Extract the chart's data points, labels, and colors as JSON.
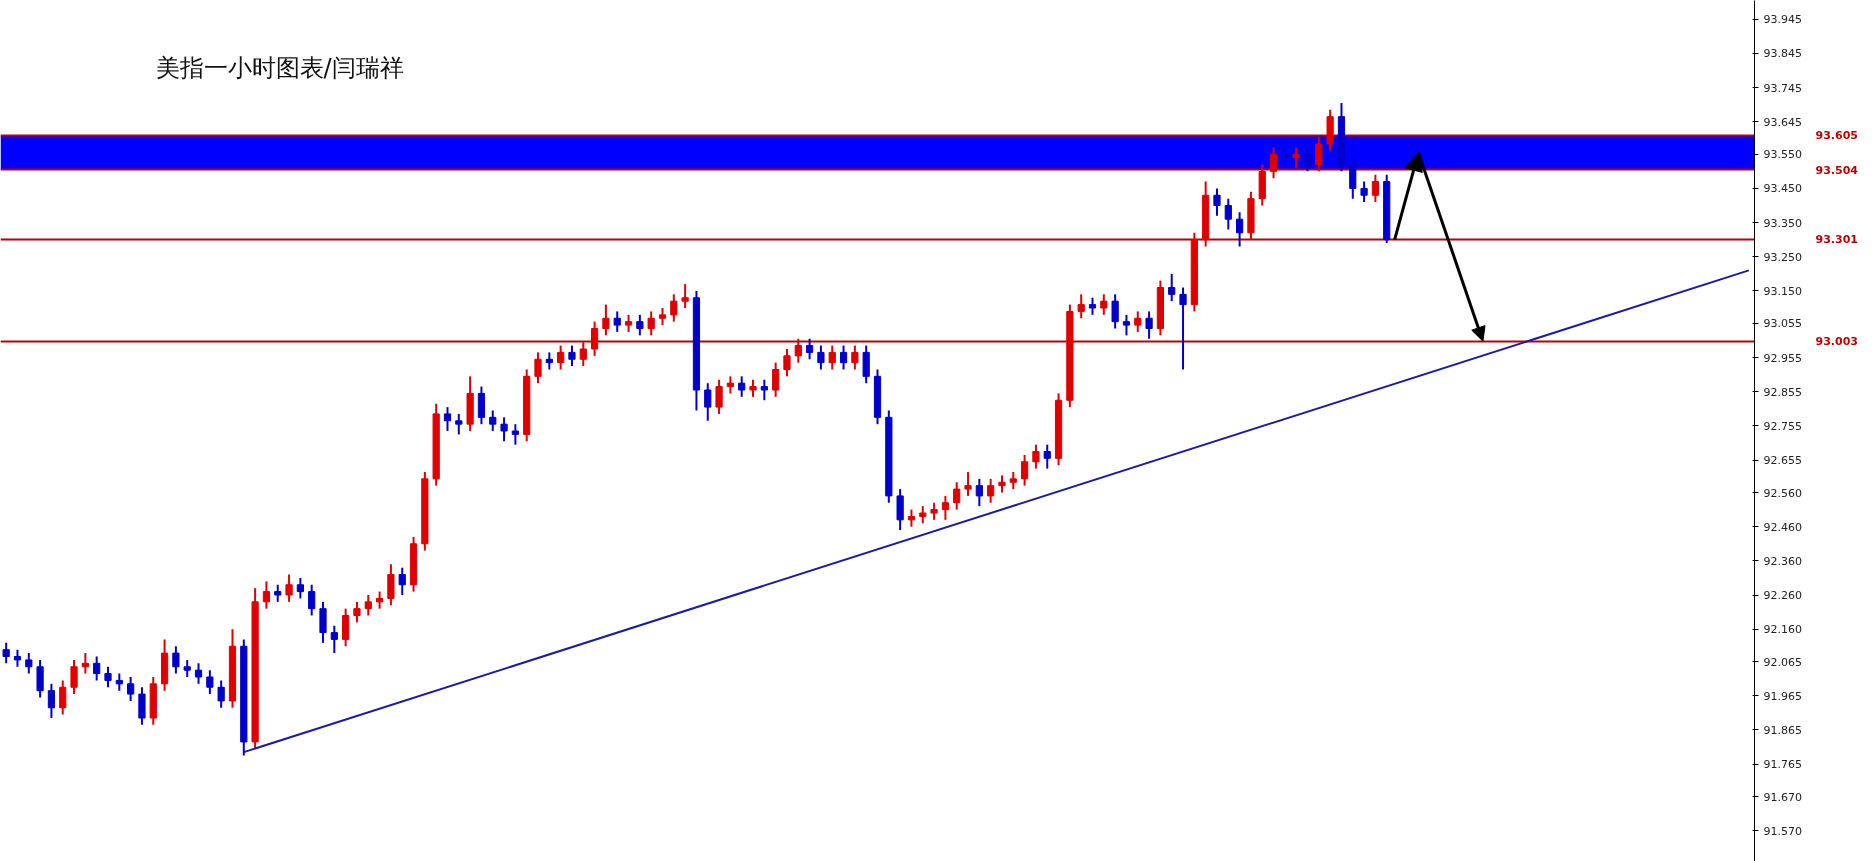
{
  "chart_data": {
    "type": "candlestick",
    "title": "美指一小时图表/闫瑞祥",
    "categories": [
      null,
      null,
      null,
      null,
      null,
      null,
      null,
      null,
      null,
      null,
      null,
      null,
      null,
      null,
      null,
      null,
      null,
      null,
      null,
      null,
      null,
      null,
      null,
      null,
      null,
      null,
      null,
      null,
      null,
      null,
      null,
      null,
      null,
      null,
      null,
      null,
      null,
      null,
      null,
      null,
      null,
      null,
      null,
      null,
      null,
      null,
      null,
      null,
      null,
      null,
      null,
      null,
      null,
      null,
      null,
      null,
      null,
      null,
      null,
      null,
      null,
      null,
      null,
      null,
      null,
      null,
      null,
      null,
      null,
      null,
      null,
      null,
      null,
      null,
      null,
      null,
      null,
      null,
      null,
      null,
      null,
      null,
      null,
      null,
      null,
      null,
      null,
      null,
      null,
      null,
      null,
      null,
      null,
      null,
      null,
      null,
      null,
      null,
      null,
      null,
      null,
      null,
      null,
      null,
      null,
      null,
      null,
      null,
      null,
      null,
      null,
      null,
      null,
      null,
      null,
      null,
      null,
      null,
      null,
      null,
      null,
      null,
      null,
      null,
      null,
      null,
      null,
      null,
      null,
      null,
      null,
      null,
      null,
      null,
      null,
      null,
      null,
      null,
      null,
      null,
      null,
      null,
      null,
      null,
      null,
      null,
      null,
      null,
      null,
      null,
      null,
      null,
      null,
      null,
      null
    ],
    "ohlc": [
      [
        92.1,
        92.12,
        92.06,
        92.08
      ],
      [
        92.08,
        92.1,
        92.05,
        92.07
      ],
      [
        92.07,
        92.09,
        92.03,
        92.05
      ],
      [
        92.05,
        92.07,
        91.96,
        91.98
      ],
      [
        91.98,
        92.0,
        91.9,
        91.93
      ],
      [
        91.93,
        92.01,
        91.91,
        91.99
      ],
      [
        91.99,
        92.07,
        91.97,
        92.05
      ],
      [
        92.05,
        92.09,
        92.03,
        92.06
      ],
      [
        92.06,
        92.08,
        92.01,
        92.03
      ],
      [
        92.03,
        92.05,
        91.99,
        92.01
      ],
      [
        92.01,
        92.03,
        91.98,
        92.0
      ],
      [
        92.0,
        92.02,
        91.95,
        91.97
      ],
      [
        91.97,
        91.99,
        91.88,
        91.9
      ],
      [
        91.9,
        92.02,
        91.88,
        92.0
      ],
      [
        92.0,
        92.13,
        91.98,
        92.09
      ],
      [
        92.09,
        92.11,
        92.03,
        92.05
      ],
      [
        92.05,
        92.07,
        92.02,
        92.04
      ],
      [
        92.04,
        92.06,
        92.0,
        92.02
      ],
      [
        92.02,
        92.04,
        91.97,
        91.99
      ],
      [
        91.99,
        92.01,
        91.93,
        91.95
      ],
      [
        91.95,
        92.16,
        91.93,
        92.11
      ],
      [
        92.11,
        92.13,
        91.79,
        91.83
      ],
      [
        91.83,
        92.28,
        91.81,
        92.24
      ],
      [
        92.24,
        92.3,
        92.22,
        92.27
      ],
      [
        92.27,
        92.29,
        92.24,
        92.26
      ],
      [
        92.26,
        92.32,
        92.24,
        92.29
      ],
      [
        92.29,
        92.31,
        92.25,
        92.27
      ],
      [
        92.27,
        92.29,
        92.2,
        92.22
      ],
      [
        92.22,
        92.24,
        92.12,
        92.15
      ],
      [
        92.15,
        92.17,
        92.09,
        92.13
      ],
      [
        92.13,
        92.22,
        92.11,
        92.2
      ],
      [
        92.2,
        92.24,
        92.18,
        92.22
      ],
      [
        92.22,
        92.26,
        92.2,
        92.24
      ],
      [
        92.24,
        92.27,
        92.22,
        92.25
      ],
      [
        92.25,
        92.35,
        92.23,
        92.32
      ],
      [
        92.32,
        92.34,
        92.26,
        92.29
      ],
      [
        92.29,
        92.43,
        92.27,
        92.41
      ],
      [
        92.41,
        92.62,
        92.39,
        92.6
      ],
      [
        92.6,
        92.82,
        92.58,
        92.79
      ],
      [
        92.79,
        92.81,
        92.74,
        92.77
      ],
      [
        92.77,
        92.79,
        92.73,
        92.76
      ],
      [
        92.76,
        92.9,
        92.74,
        92.85
      ],
      [
        92.85,
        92.87,
        92.76,
        92.78
      ],
      [
        92.78,
        92.8,
        92.74,
        92.76
      ],
      [
        92.76,
        92.78,
        92.71,
        92.74
      ],
      [
        92.74,
        92.76,
        92.7,
        92.73
      ],
      [
        92.73,
        92.92,
        92.71,
        92.9
      ],
      [
        92.9,
        92.97,
        92.88,
        92.95
      ],
      [
        92.95,
        92.97,
        92.92,
        92.94
      ],
      [
        92.94,
        92.99,
        92.92,
        92.97
      ],
      [
        92.97,
        92.99,
        92.93,
        92.95
      ],
      [
        92.95,
        93.0,
        92.93,
        92.98
      ],
      [
        92.98,
        93.06,
        92.96,
        93.04
      ],
      [
        93.04,
        93.11,
        93.02,
        93.07
      ],
      [
        93.07,
        93.09,
        93.03,
        93.05
      ],
      [
        93.05,
        93.08,
        93.03,
        93.06
      ],
      [
        93.06,
        93.08,
        93.02,
        93.04
      ],
      [
        93.04,
        93.09,
        93.02,
        93.07
      ],
      [
        93.07,
        93.1,
        93.05,
        93.08
      ],
      [
        93.08,
        93.14,
        93.06,
        93.12
      ],
      [
        93.12,
        93.17,
        93.1,
        93.13
      ],
      [
        93.13,
        93.15,
        92.8,
        92.86
      ],
      [
        92.86,
        92.88,
        92.77,
        92.81
      ],
      [
        92.81,
        92.89,
        92.79,
        92.87
      ],
      [
        92.87,
        92.9,
        92.85,
        92.88
      ],
      [
        92.88,
        92.9,
        92.84,
        92.86
      ],
      [
        92.86,
        92.89,
        92.84,
        92.87
      ],
      [
        92.87,
        92.89,
        92.83,
        92.86
      ],
      [
        92.86,
        92.94,
        92.84,
        92.92
      ],
      [
        92.92,
        92.98,
        92.9,
        92.96
      ],
      [
        92.96,
        93.01,
        92.94,
        92.99
      ],
      [
        92.99,
        93.01,
        92.95,
        92.97
      ],
      [
        92.97,
        92.99,
        92.92,
        92.94
      ],
      [
        92.94,
        92.99,
        92.92,
        92.97
      ],
      [
        92.97,
        92.99,
        92.92,
        92.94
      ],
      [
        92.94,
        92.99,
        92.92,
        92.97
      ],
      [
        92.97,
        92.99,
        92.88,
        92.9
      ],
      [
        92.9,
        92.92,
        92.76,
        92.78
      ],
      [
        92.78,
        92.8,
        92.53,
        92.55
      ],
      [
        92.55,
        92.57,
        92.45,
        92.48
      ],
      [
        92.48,
        92.51,
        92.46,
        92.49
      ],
      [
        92.49,
        92.52,
        92.47,
        92.5
      ],
      [
        92.5,
        92.53,
        92.48,
        92.51
      ],
      [
        92.51,
        92.55,
        92.48,
        92.53
      ],
      [
        92.53,
        92.59,
        92.51,
        92.57
      ],
      [
        92.57,
        92.62,
        92.55,
        92.58
      ],
      [
        92.58,
        92.6,
        92.52,
        92.55
      ],
      [
        92.55,
        92.6,
        92.53,
        92.58
      ],
      [
        92.58,
        92.61,
        92.56,
        92.59
      ],
      [
        92.59,
        92.62,
        92.57,
        92.6
      ],
      [
        92.6,
        92.67,
        92.58,
        92.65
      ],
      [
        92.65,
        92.7,
        92.63,
        92.68
      ],
      [
        92.68,
        92.7,
        92.63,
        92.66
      ],
      [
        92.66,
        92.85,
        92.64,
        92.83
      ],
      [
        92.83,
        93.11,
        92.81,
        93.09
      ],
      [
        93.09,
        93.14,
        93.07,
        93.11
      ],
      [
        93.11,
        93.13,
        93.08,
        93.1
      ],
      [
        93.1,
        93.14,
        93.08,
        93.12
      ],
      [
        93.12,
        93.14,
        93.04,
        93.06
      ],
      [
        93.06,
        93.08,
        93.02,
        93.05
      ],
      [
        93.05,
        93.09,
        93.03,
        93.07
      ],
      [
        93.07,
        93.09,
        93.01,
        93.04
      ],
      [
        93.04,
        93.18,
        93.02,
        93.16
      ],
      [
        93.16,
        93.2,
        93.12,
        93.14
      ],
      [
        93.14,
        93.16,
        92.92,
        93.11
      ],
      [
        93.11,
        93.32,
        93.09,
        93.3
      ],
      [
        93.3,
        93.47,
        93.28,
        93.43
      ],
      [
        93.43,
        93.45,
        93.37,
        93.4
      ],
      [
        93.4,
        93.42,
        93.33,
        93.36
      ],
      [
        93.36,
        93.38,
        93.28,
        93.32
      ],
      [
        93.32,
        93.44,
        93.3,
        93.42
      ],
      [
        93.42,
        93.52,
        93.4,
        93.5
      ],
      [
        93.5,
        93.57,
        93.48,
        93.55
      ],
      [
        93.55,
        93.57,
        93.51,
        93.54
      ],
      [
        93.54,
        93.57,
        93.51,
        93.55
      ],
      [
        93.55,
        93.57,
        93.5,
        93.52
      ],
      [
        93.52,
        93.6,
        93.5,
        93.58
      ],
      [
        93.58,
        93.68,
        93.56,
        93.66
      ],
      [
        93.66,
        93.7,
        93.5,
        93.52
      ],
      [
        93.52,
        93.54,
        93.42,
        93.45
      ],
      [
        93.45,
        93.47,
        93.41,
        93.43
      ],
      [
        93.43,
        93.49,
        93.41,
        93.47
      ],
      [
        93.47,
        93.49,
        93.29,
        93.3
      ],
      null,
      null,
      null,
      null,
      null,
      null,
      null,
      null,
      null,
      null,
      null,
      null,
      null,
      null,
      null,
      null,
      null,
      null,
      null,
      null,
      null,
      null,
      null,
      null,
      null,
      null,
      null,
      null,
      null,
      null,
      null,
      null
    ],
    "colors": [
      "#0000cc",
      "#0000cc",
      "#0000cc",
      "#0000cc",
      "#0000cc",
      "#e00000",
      "#e00000",
      "#e00000",
      "#0000cc",
      "#0000cc",
      "#0000cc",
      "#0000cc",
      "#0000cc",
      "#e00000",
      "#e00000",
      "#0000cc",
      "#0000cc",
      "#0000cc",
      "#0000cc",
      "#0000cc",
      "#e00000",
      "#0000cc",
      "#e00000",
      "#e00000",
      "#0000cc",
      "#e00000",
      "#0000cc",
      "#0000cc",
      "#0000cc",
      "#0000cc",
      "#e00000",
      "#e00000",
      "#e00000",
      "#e00000",
      "#e00000",
      "#0000cc",
      "#e00000",
      "#e00000",
      "#e00000",
      "#0000cc",
      "#0000cc",
      "#e00000",
      "#0000cc",
      "#0000cc",
      "#0000cc",
      "#0000cc",
      "#e00000",
      "#e00000",
      "#0000cc",
      "#e00000",
      "#0000cc",
      "#e00000",
      "#e00000",
      "#e00000",
      "#0000cc",
      "#e00000",
      "#0000cc",
      "#e00000",
      "#e00000",
      "#e00000",
      "#e00000",
      "#0000cc",
      "#0000cc",
      "#e00000",
      "#e00000",
      "#0000cc",
      "#e00000",
      "#0000cc",
      "#e00000",
      "#e00000",
      "#e00000",
      "#0000cc",
      "#0000cc",
      "#e00000",
      "#0000cc",
      "#e00000",
      "#0000cc",
      "#0000cc",
      "#0000cc",
      "#0000cc",
      "#e00000",
      "#e00000",
      "#e00000",
      "#e00000",
      "#e00000",
      "#e00000",
      "#0000cc",
      "#e00000",
      "#e00000",
      "#e00000",
      "#e00000",
      "#e00000",
      "#0000cc",
      "#e00000",
      "#e00000",
      "#e00000",
      "#0000cc",
      "#e00000",
      "#0000cc",
      "#0000cc",
      "#e00000",
      "#0000cc",
      "#e00000",
      "#0000cc",
      "#0000cc",
      "#e00000",
      "#e00000",
      "#0000cc",
      "#0000cc",
      "#0000cc",
      "#e00000",
      "#e00000",
      "#e00000",
      "#0000cc",
      "#e00000",
      "#0000cc",
      "#e00000",
      "#e00000",
      "#0000cc",
      "#0000cc",
      "#0000cc",
      "#e00000",
      "#0000cc",
      null,
      null,
      null,
      null,
      null,
      null,
      null,
      null,
      null,
      null,
      null,
      null,
      null,
      null,
      null,
      null,
      null,
      null,
      null,
      null,
      null,
      null,
      null,
      null,
      null,
      null,
      null,
      null,
      null,
      null,
      null,
      null
    ],
    "series": [
      {
        "type": "line",
        "color": "#1a1aa8",
        "values": [
          null,
          null,
          null,
          null,
          null,
          null,
          null,
          null,
          null,
          null,
          null,
          null,
          null,
          null,
          null,
          null,
          null,
          null,
          null,
          null,
          null,
          91.8,
          null,
          null,
          null,
          null,
          null,
          null,
          null,
          null,
          null,
          null,
          null,
          null,
          null,
          null,
          null,
          null,
          null,
          null,
          null,
          null,
          null,
          null,
          null,
          null,
          null,
          null,
          null,
          null,
          null,
          null,
          null,
          null,
          null,
          null,
          null,
          null,
          null,
          null,
          null,
          null,
          null,
          null,
          null,
          null,
          null,
          null,
          null,
          null,
          null,
          null,
          null,
          null,
          null,
          null,
          null,
          null,
          null,
          null,
          null,
          null,
          null,
          null,
          null,
          null,
          null,
          null,
          null,
          null,
          null,
          null,
          null,
          null,
          null,
          null,
          null,
          null,
          null,
          null,
          null,
          null,
          null,
          null,
          null,
          null,
          null,
          null,
          null,
          null,
          null,
          null,
          null,
          null,
          null,
          null,
          null,
          null,
          null,
          null,
          null,
          null,
          null,
          null,
          null,
          null,
          null,
          null,
          null,
          null,
          null,
          null,
          null,
          null,
          null,
          null,
          null,
          null,
          null,
          null,
          null,
          null,
          null,
          null,
          null,
          null,
          null,
          null,
          null,
          null,
          null,
          null,
          null,
          null,
          93.21
        ]
      }
    ],
    "ylim": [
      91.48,
      94.0
    ],
    "yticks": [
      {
        "value": 91.57,
        "label": "91.570"
      },
      {
        "value": 91.67,
        "label": "91.670"
      },
      91.765,
      91.865,
      91.965,
      92.065,
      {
        "value": 92.16,
        "label": "92.160"
      },
      {
        "value": 92.26,
        "label": "92.260"
      },
      {
        "value": 92.36,
        "label": "92.360"
      },
      {
        "value": 92.46,
        "label": "92.460"
      },
      {
        "value": 92.56,
        "label": "92.560"
      },
      92.655,
      92.755,
      92.855,
      92.955,
      93.055,
      {
        "value": 93.15,
        "label": "93.150"
      },
      {
        "value": 93.25,
        "label": "93.250"
      },
      {
        "value": 93.35,
        "label": "93.350"
      },
      {
        "value": 93.45,
        "label": "93.450"
      },
      {
        "value": 93.55,
        "label": "93.550"
      },
      93.645,
      93.745,
      93.845,
      93.945
    ],
    "ref_lines": [
      {
        "axis": "y",
        "value": 93.605,
        "label": "93.605",
        "color": "#c00000"
      },
      {
        "axis": "y",
        "value": 93.504,
        "label": "93.504",
        "color": "#c00000"
      },
      {
        "axis": "y",
        "value": 93.301,
        "label": "93.301",
        "color": "#c00000"
      },
      {
        "axis": "y",
        "value": 93.003,
        "label": "93.003",
        "color": "#c00000"
      }
    ],
    "bands": [
      {
        "axis": "y",
        "from": 93.504,
        "to": 93.605,
        "label": null,
        "color": "#0000ff"
      }
    ],
    "tick_labels": "y",
    "grid": false
  }
}
